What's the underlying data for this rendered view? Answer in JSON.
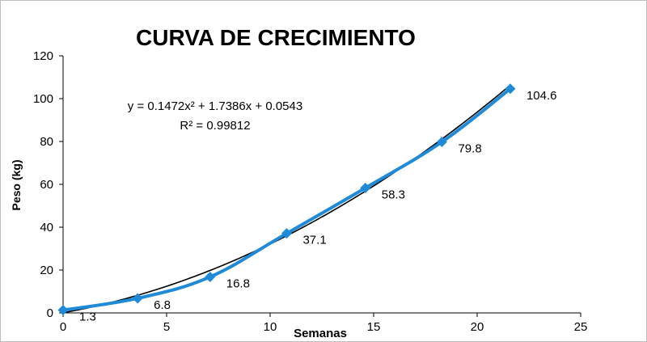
{
  "chart_data": {
    "type": "scatter",
    "title": "CURVA DE CRECIMIENTO",
    "xlabel": "Semanas",
    "ylabel": "Peso (kg)",
    "xlim": [
      0,
      25
    ],
    "ylim": [
      0,
      120
    ],
    "xticks": [
      0,
      5,
      10,
      15,
      20,
      25
    ],
    "yticks": [
      0,
      20,
      40,
      60,
      80,
      100,
      120
    ],
    "grid": false,
    "legend": "none",
    "series": [
      {
        "x": [
          0,
          3.6,
          7.1,
          10.8,
          14.6,
          18.3,
          21.6
        ],
        "y": [
          1.3,
          6.8,
          16.8,
          37.1,
          58.3,
          79.8,
          104.6
        ],
        "labels": [
          "1.3",
          "6.8",
          "16.8",
          "37.1",
          "58.3",
          "79.8",
          "104.6"
        ],
        "color": "#1f8ad8",
        "marker": "diamond"
      }
    ],
    "trendline": {
      "type": "polynomial",
      "coefficients": [
        0.1472,
        1.7386,
        0.0543
      ],
      "color": "#000000",
      "equation": "y = 0.1472x² + 1.7386x + 0.0543",
      "r_squared": "R² = 0.99812"
    }
  }
}
